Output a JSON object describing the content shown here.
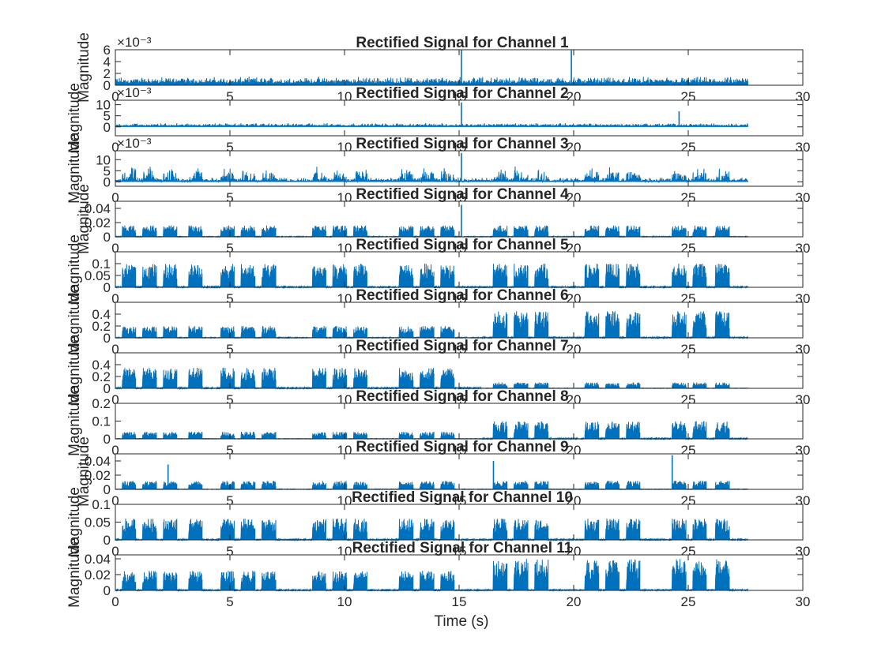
{
  "figure": {
    "xlabel": "Time (s)",
    "ylabel": "Magnitude",
    "signal_color": "#0072BD",
    "x_ticks": [
      "0",
      "5",
      "10",
      "15",
      "20",
      "25",
      "30"
    ]
  },
  "chart_data": [
    {
      "type": "line",
      "title": "Rectified Signal for Channel 1",
      "xlabel": "",
      "ylabel": "Magnitude",
      "xlim": [
        0,
        30
      ],
      "ylim": [
        0,
        0.006
      ],
      "y_ticks": [
        "0",
        "2",
        "4",
        "6"
      ],
      "exponent": "×10⁻³",
      "x": [
        0,
        27.6
      ],
      "data_range": [
        0,
        0.006
      ],
      "typical_peak": 0.0015,
      "envelope": "noisy",
      "spikes": [
        {
          "x": 15.1,
          "y": 0.0062
        },
        {
          "x": 19.9,
          "y": 0.0059
        }
      ]
    },
    {
      "type": "line",
      "title": "Rectified Signal for Channel 2",
      "xlabel": "",
      "ylabel": "Magnitude",
      "xlim": [
        0,
        30
      ],
      "ylim": [
        -0.004,
        0.012
      ],
      "y_ticks": [
        "0",
        "5",
        "10"
      ],
      "exponent": "×10⁻³",
      "x": [
        0,
        27.6
      ],
      "data_range": [
        0,
        0.011
      ],
      "typical_peak": 0.0018,
      "envelope": "noisy",
      "spikes": [
        {
          "x": 15.1,
          "y": 0.011
        },
        {
          "x": 24.6,
          "y": 0.007
        }
      ]
    },
    {
      "type": "line",
      "title": "Rectified Signal for Channel 3",
      "xlabel": "",
      "ylabel": "Magnitude",
      "xlim": [
        0,
        30
      ],
      "ylim": [
        -0.002,
        0.014
      ],
      "y_ticks": [
        "0",
        "5",
        "10"
      ],
      "exponent": "×10⁻³",
      "x": [
        0,
        27.6
      ],
      "data_range": [
        0,
        0.013
      ],
      "typical_peak": 0.007,
      "envelope": "spiky",
      "spikes": [
        {
          "x": 15.1,
          "y": 0.013
        }
      ]
    },
    {
      "type": "line",
      "title": "Rectified Signal for Channel 4",
      "xlabel": "",
      "ylabel": "Magnitude",
      "xlim": [
        0,
        30
      ],
      "ylim": [
        0,
        0.05
      ],
      "y_ticks": [
        "0",
        "0.02",
        "0.04"
      ],
      "exponent": "",
      "x": [
        0,
        27.6
      ],
      "data_range": [
        0,
        0.045
      ],
      "typical_peak": 0.016,
      "envelope": "bursts",
      "spikes": [
        {
          "x": 15.1,
          "y": 0.045
        }
      ]
    },
    {
      "type": "line",
      "title": "Rectified Signal for Channel 5",
      "xlabel": "",
      "ylabel": "Magnitude",
      "xlim": [
        0,
        30
      ],
      "ylim": [
        0,
        0.15
      ],
      "y_ticks": [
        "0",
        "0.05",
        "0.1"
      ],
      "exponent": "",
      "x": [
        0,
        27.6
      ],
      "data_range": [
        0,
        0.15
      ],
      "typical_peak": 0.1,
      "envelope": "bursts",
      "spikes": []
    },
    {
      "type": "line",
      "title": "Rectified Signal for Channel 6",
      "xlabel": "",
      "ylabel": "Magnitude",
      "xlim": [
        0,
        30
      ],
      "ylim": [
        0,
        0.6
      ],
      "y_ticks": [
        "0",
        "0.2",
        "0.4"
      ],
      "exponent": "",
      "x": [
        0,
        27.6
      ],
      "data_range": [
        0,
        0.55
      ],
      "typical_peak": 0.2,
      "late_peak": 0.45,
      "envelope": "bursts",
      "spikes": []
    },
    {
      "type": "line",
      "title": "Rectified Signal for Channel 7",
      "xlabel": "",
      "ylabel": "Magnitude",
      "xlim": [
        0,
        30
      ],
      "ylim": [
        0,
        0.6
      ],
      "y_ticks": [
        "0",
        "0.2",
        "0.4"
      ],
      "exponent": "",
      "x": [
        0,
        27.6
      ],
      "data_range": [
        0,
        0.45
      ],
      "typical_peak": 0.35,
      "late_peak": 0.1,
      "envelope": "bursts",
      "spikes": []
    },
    {
      "type": "line",
      "title": "Rectified Signal for Channel 8",
      "xlabel": "",
      "ylabel": "Magnitude",
      "xlim": [
        0,
        30
      ],
      "ylim": [
        0,
        0.2
      ],
      "y_ticks": [
        "0",
        "0.1",
        "0.2"
      ],
      "exponent": "",
      "x": [
        0,
        27.6
      ],
      "data_range": [
        0,
        0.2
      ],
      "typical_peak": 0.04,
      "late_peak": 0.1,
      "envelope": "bursts",
      "spikes": []
    },
    {
      "type": "line",
      "title": "Rectified Signal for Channel 9",
      "xlabel": "",
      "ylabel": "Magnitude",
      "xlim": [
        0,
        30
      ],
      "ylim": [
        0,
        0.05
      ],
      "y_ticks": [
        "0",
        "0.02",
        "0.04"
      ],
      "exponent": "",
      "x": [
        0,
        27.6
      ],
      "data_range": [
        0,
        0.048
      ],
      "typical_peak": 0.012,
      "envelope": "bursts",
      "spikes": [
        {
          "x": 2.3,
          "y": 0.035
        },
        {
          "x": 16.5,
          "y": 0.04
        },
        {
          "x": 24.3,
          "y": 0.048
        }
      ]
    },
    {
      "type": "line",
      "title": "Rectified Signal for Channel 10",
      "xlabel": "",
      "ylabel": "Magnitude",
      "xlim": [
        0,
        30
      ],
      "ylim": [
        0,
        0.1
      ],
      "y_ticks": [
        "0",
        "0.05",
        "0.1"
      ],
      "exponent": "",
      "x": [
        0,
        27.6
      ],
      "data_range": [
        0,
        0.1
      ],
      "typical_peak": 0.06,
      "envelope": "bursts",
      "spikes": []
    },
    {
      "type": "line",
      "title": "Rectified Signal for Channel 11",
      "xlabel": "Time (s)",
      "ylabel": "Magnitude",
      "xlim": [
        0,
        30
      ],
      "ylim": [
        0,
        0.045
      ],
      "y_ticks": [
        "0",
        "0.02",
        "0.04"
      ],
      "exponent": "",
      "x": [
        0,
        27.6
      ],
      "data_range": [
        0,
        0.045
      ],
      "typical_peak": 0.025,
      "late_peak": 0.04,
      "envelope": "bursts",
      "spikes": []
    }
  ]
}
